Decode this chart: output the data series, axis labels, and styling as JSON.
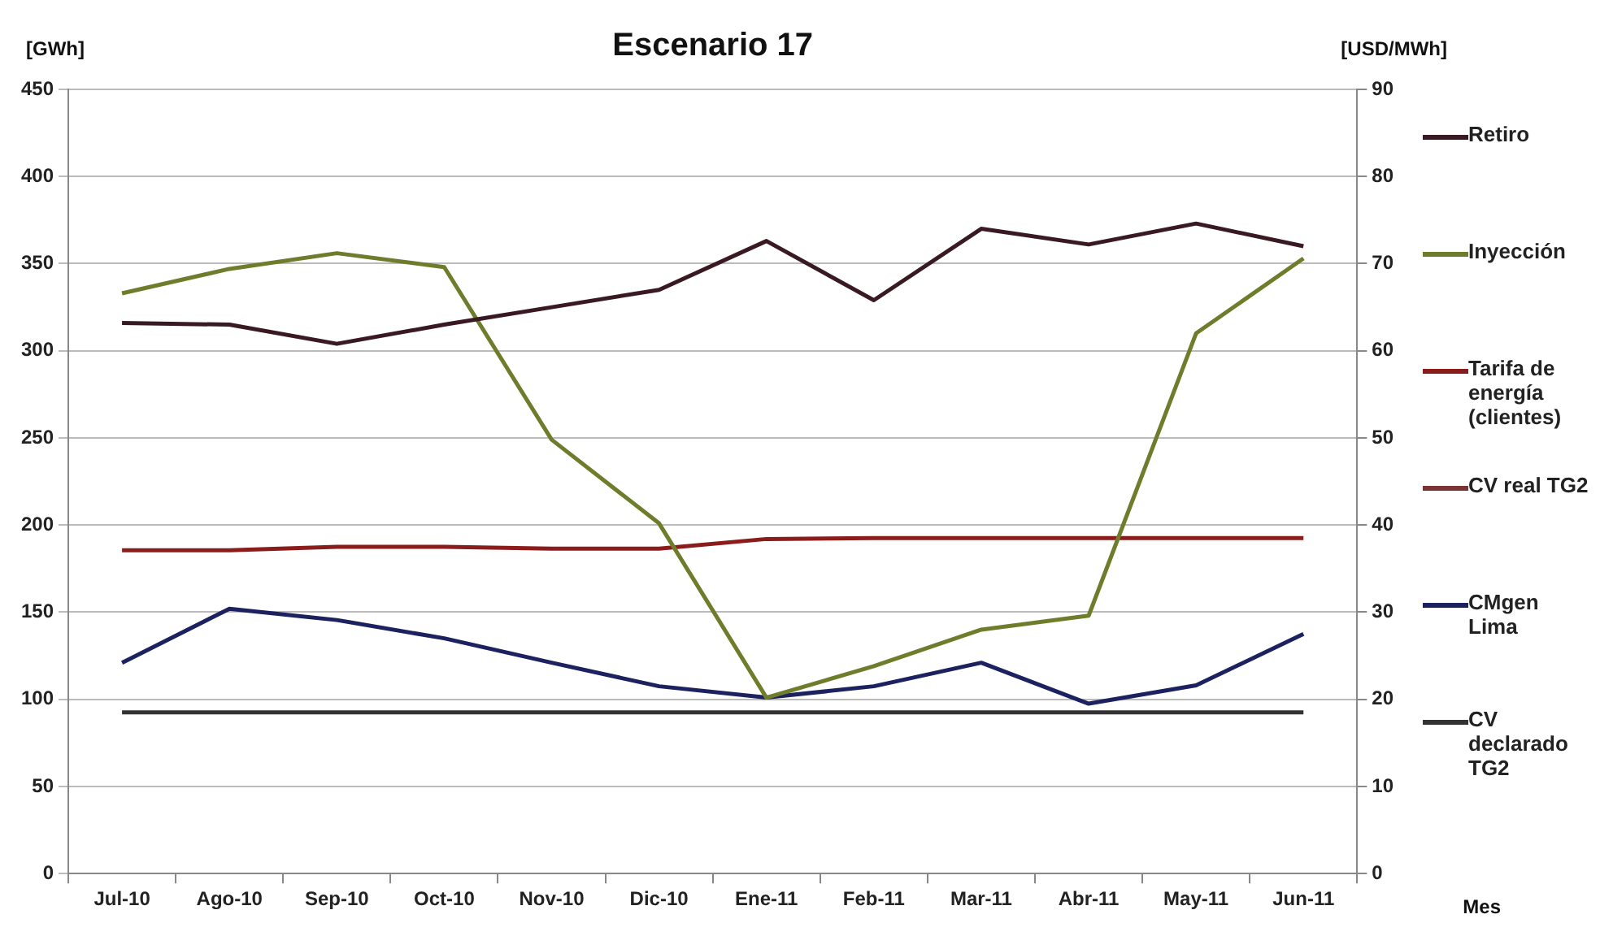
{
  "chart_data": {
    "type": "line",
    "title": "Escenario 17",
    "xlabel": "Mes",
    "ylabel": "[GWh]",
    "y2label": "[USD/MWh]",
    "categories": [
      "Jul-10",
      "Ago-10",
      "Sep-10",
      "Oct-10",
      "Nov-10",
      "Dic-10",
      "Ene-11",
      "Feb-11",
      "Mar-11",
      "Abr-11",
      "May-11",
      "Jun-11"
    ],
    "series": [
      {
        "name": "Retiro",
        "color": "#3a1a22",
        "values": [
          316,
          315,
          304,
          315,
          325,
          335,
          363,
          329,
          370,
          361,
          373,
          360
        ]
      },
      {
        "name": "Inyección",
        "color": "#6e7d2c",
        "values": [
          333,
          347,
          356,
          348,
          249,
          201,
          101,
          119,
          140,
          148,
          310,
          353
        ]
      },
      {
        "name": "Tarifa de energía (clientes)",
        "color": "#8b1c1c",
        "axis": "y2",
        "values": [
          37.1,
          37.1,
          37.5,
          37.5,
          37.3,
          37.3,
          38.4,
          38.5,
          38.5,
          38.5,
          38.5,
          38.5
        ]
      },
      {
        "name": "CV real TG2",
        "color": "#7a3434",
        "axis": "y2",
        "values": [
          null,
          null,
          null,
          null,
          null,
          null,
          null,
          null,
          null,
          null,
          null,
          null
        ]
      },
      {
        "name": "CMgen Lima",
        "color": "#1c2160",
        "axis": "y2",
        "values": [
          24.2,
          30.4,
          29.1,
          27.0,
          24.2,
          21.5,
          20.2,
          21.5,
          24.2,
          19.5,
          21.6,
          27.5
        ]
      },
      {
        "name": "CV declarado TG2",
        "color": "#333333",
        "axis": "y2",
        "values": [
          18.5,
          18.5,
          18.5,
          18.5,
          18.5,
          18.5,
          18.5,
          18.5,
          18.5,
          18.5,
          18.5,
          18.5
        ]
      }
    ],
    "ylim": [
      0,
      450
    ],
    "yticks": [
      0,
      50,
      100,
      150,
      200,
      250,
      300,
      350,
      400,
      450
    ],
    "y2lim": [
      0,
      90
    ],
    "y2ticks": [
      0,
      10,
      20,
      30,
      40,
      50,
      60,
      70,
      80,
      90
    ],
    "grid": "y",
    "legend": "right",
    "marker": "none",
    "line_style": "solid"
  }
}
